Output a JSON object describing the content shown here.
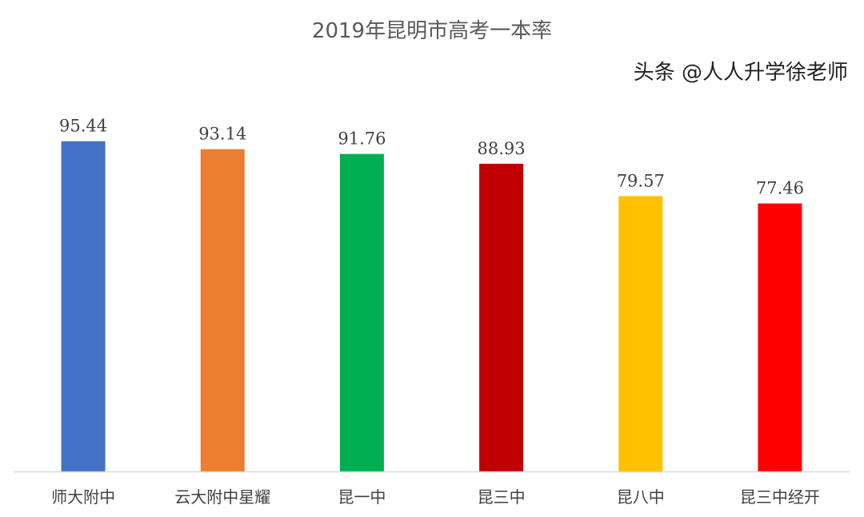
{
  "chart_data": {
    "type": "bar",
    "title": "2019年昆明市高考一本率",
    "categories": [
      "师大附中",
      "云大附中星耀",
      "昆一中",
      "昆三中",
      "昆八中",
      "昆三中经开"
    ],
    "values": [
      95.44,
      93.14,
      91.76,
      88.93,
      79.57,
      77.46
    ],
    "colors": [
      "#4472C4",
      "#ED7D31",
      "#00B050",
      "#C00000",
      "#FFC000",
      "#FF0000"
    ],
    "ylim": [
      0,
      100
    ],
    "grid": false,
    "xlabel": "",
    "ylabel": ""
  },
  "watermark": "头条 @人人升学徐老师"
}
